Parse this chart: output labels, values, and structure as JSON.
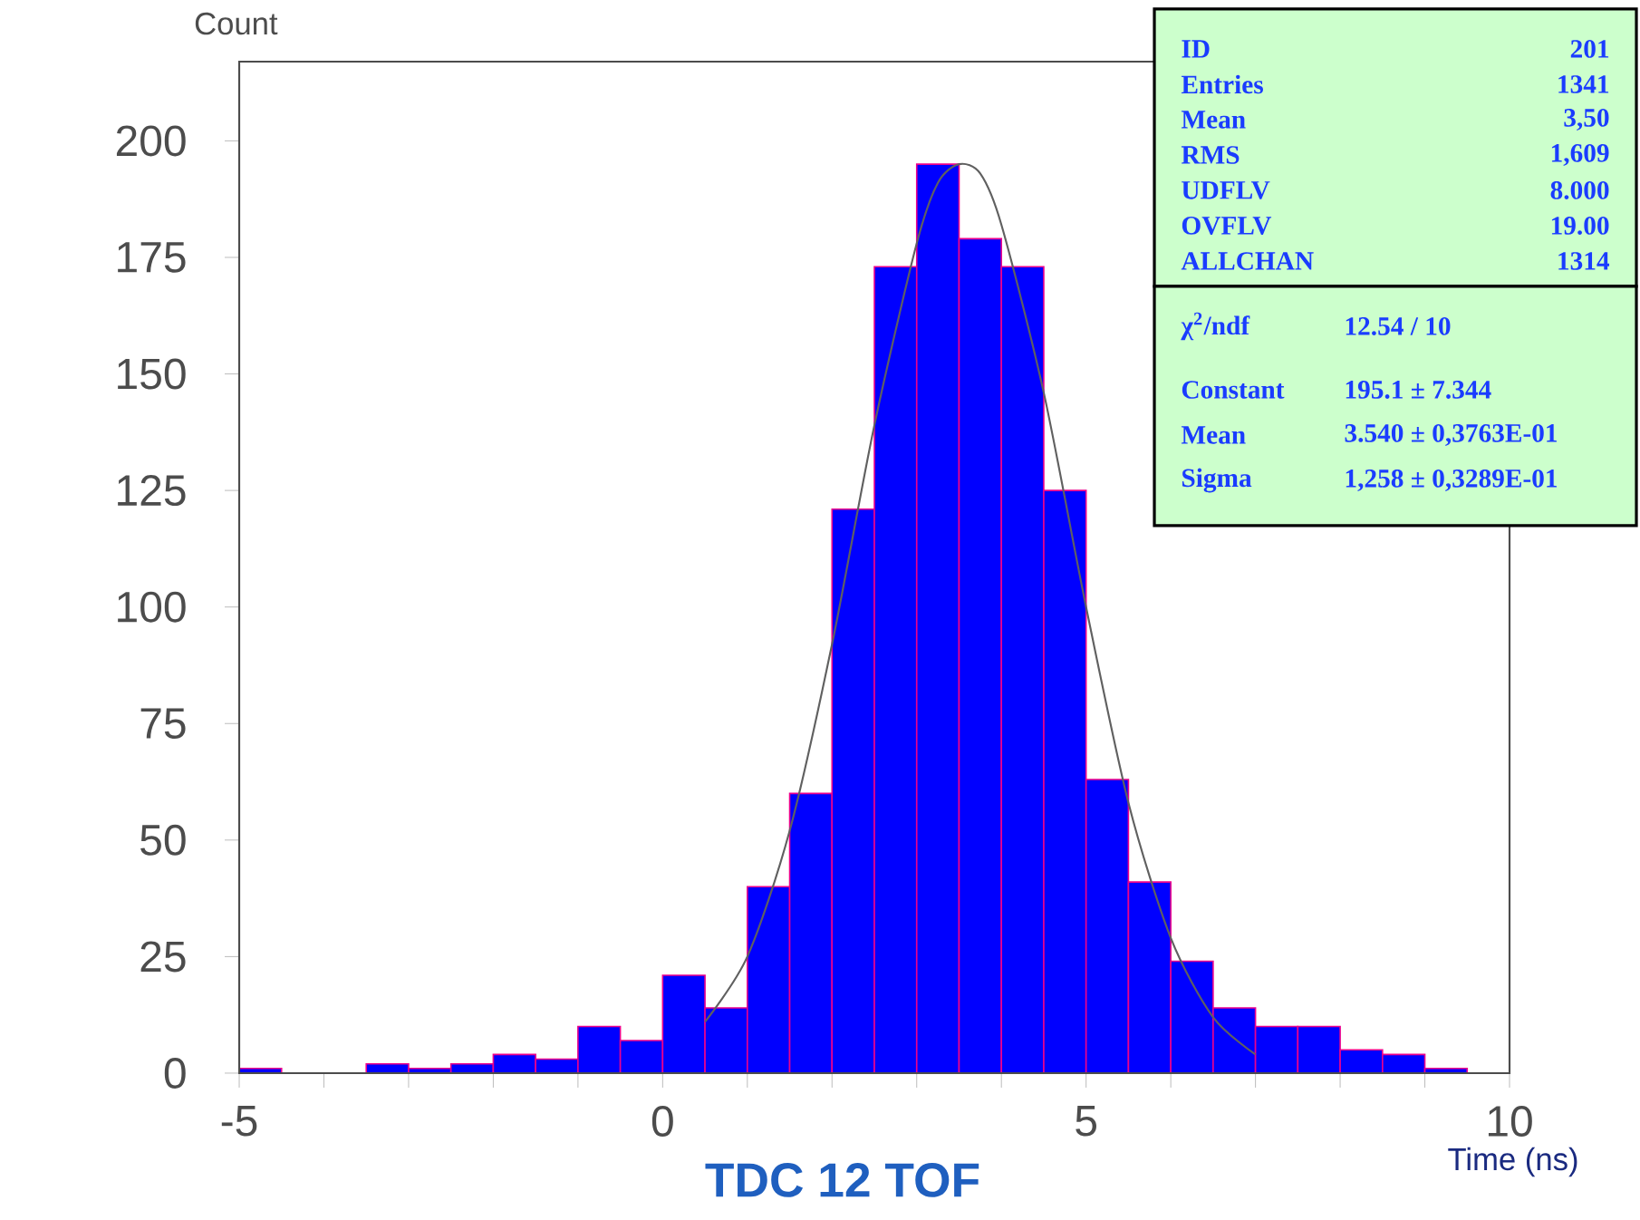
{
  "chart_data": {
    "type": "histogram",
    "title": "TDC 12 TOF",
    "xlabel": "Time (ns)",
    "ylabel": "Count",
    "bins": [
      -5,
      -4.5,
      -4,
      -3.5,
      -3,
      -2.5,
      -2,
      -1.5,
      -1,
      -0.5,
      0,
      0.5,
      1,
      1.5,
      2,
      2.5,
      3,
      3.5,
      4,
      4.5,
      5,
      5.5,
      6,
      6.5,
      7,
      7.5,
      8,
      8.5,
      9,
      9.5,
      10
    ],
    "series": [
      {
        "type": "histogram",
        "color": "#0000ff",
        "values": [
          1,
          0,
          0,
          2,
          1,
          2,
          4,
          3,
          10,
          7,
          21,
          14,
          40,
          60,
          121,
          173,
          195,
          179,
          173,
          125,
          63,
          41,
          24,
          14,
          10,
          10,
          5,
          4,
          1,
          0
        ]
      },
      {
        "type": "line",
        "color": "#606060",
        "x": [
          0.5,
          1,
          1.5,
          2,
          2.5,
          3,
          3.25,
          3.5,
          3.75,
          4,
          4.5,
          5,
          5.5,
          6,
          6.5,
          7
        ],
        "values": [
          11,
          25,
          52,
          92,
          139,
          178,
          191,
          195,
          193,
          182,
          146,
          100,
          58,
          29,
          12,
          4
        ]
      }
    ],
    "xlim": [
      -5,
      10
    ],
    "ylim": [
      0,
      217
    ],
    "xticks": [
      -5,
      {
        "value": -4,
        "label": null
      },
      {
        "value": -3,
        "label": null
      },
      {
        "value": -2,
        "label": null
      },
      {
        "value": -1,
        "label": null
      },
      0,
      {
        "value": 1,
        "label": null
      },
      {
        "value": 2,
        "label": null
      },
      {
        "value": 3,
        "label": null
      },
      {
        "value": 4,
        "label": null
      },
      5,
      {
        "value": 6,
        "label": null
      },
      {
        "value": 7,
        "label": null
      },
      {
        "value": 8,
        "label": null
      },
      {
        "value": 9,
        "label": null
      },
      10
    ],
    "yticks": [
      0,
      25,
      50,
      75,
      100,
      125,
      150,
      175,
      200
    ],
    "annotations": [
      "ID",
      "201",
      "Entries",
      "1341",
      "Mean",
      "3,50",
      "RMS",
      "1,609",
      "UDFLV",
      "8.000",
      "OVFLV",
      "19.00",
      "ALLCHAN",
      "1314",
      "χ$^{2}$/ndf",
      "12.54  / 10",
      "Constant",
      "195.1 ±  7.344",
      "Mean",
      "3.540 ± 0,3763E-01",
      "Sigma",
      "1,258 ± 0,3289E-01"
    ]
  }
}
